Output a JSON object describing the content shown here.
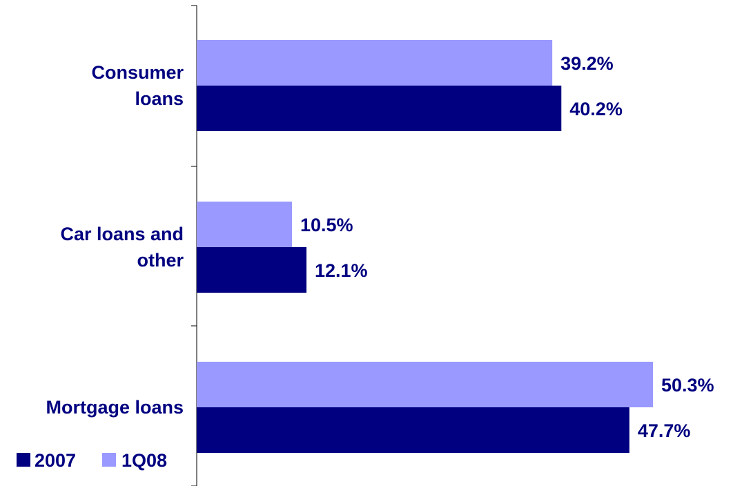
{
  "chart_data": {
    "type": "bar",
    "orientation": "horizontal",
    "categories": [
      "Consumer loans",
      "Car loans and other",
      "Mortgage loans"
    ],
    "category_label_lines": [
      [
        "Consumer",
        "loans"
      ],
      [
        "Car loans and",
        "other"
      ],
      [
        "Mortgage loans"
      ]
    ],
    "series": [
      {
        "name": "1Q08",
        "values": [
          39.2,
          10.5,
          50.3
        ],
        "labels": [
          "39.2%",
          "10.5%",
          "50.3%"
        ],
        "color": "#9999ff"
      },
      {
        "name": "2007",
        "values": [
          40.2,
          12.1,
          47.7
        ],
        "labels": [
          "40.2%",
          "12.1%",
          "47.7%"
        ],
        "color": "#000080"
      }
    ],
    "legend_order": [
      "2007",
      "1Q08"
    ],
    "legend_position": "bottom-left",
    "xlim": [
      0,
      60
    ],
    "grid": false,
    "label_color": "#000080"
  }
}
